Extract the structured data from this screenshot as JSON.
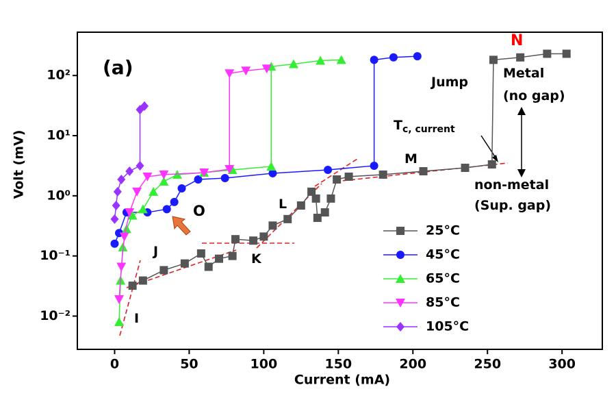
{
  "chart_data": {
    "type": "line",
    "xlabel": "Current (mA)",
    "ylabel": "Volt (mV)",
    "xlim": [
      -25,
      327
    ],
    "ylim": [
      0.0028,
      525
    ],
    "yscale": "log",
    "xticks": [
      0,
      50,
      100,
      150,
      200,
      250,
      300
    ],
    "yticks": [
      {
        "value": 0.01,
        "label": "10⁻²"
      },
      {
        "value": 0.1,
        "label": "10⁻¹"
      },
      {
        "value": 1,
        "label": "10⁰"
      },
      {
        "value": 10,
        "label": "10¹"
      },
      {
        "value": 100,
        "label": "10²"
      }
    ],
    "legend": "lower right",
    "series": [
      {
        "name": "25°C",
        "color": "#555555",
        "marker": "square",
        "x": [
          12,
          19,
          33,
          47,
          58,
          63,
          70,
          79,
          81,
          93,
          100,
          106,
          116,
          125,
          132,
          135,
          136,
          141,
          145,
          149,
          157,
          180,
          207,
          235,
          253,
          254,
          272,
          290,
          303
        ],
        "values": [
          0.032,
          0.039,
          0.058,
          0.075,
          0.11,
          0.066,
          0.09,
          0.1,
          0.19,
          0.18,
          0.21,
          0.32,
          0.41,
          0.69,
          1.17,
          0.9,
          0.43,
          0.53,
          0.9,
          1.87,
          2.08,
          2.25,
          2.56,
          2.92,
          3.33,
          182,
          200,
          230,
          230
        ]
      },
      {
        "name": "45°C",
        "color": "#1a1aff",
        "marker": "circle",
        "x": [
          0,
          3,
          8,
          22,
          35,
          40,
          45,
          56,
          74,
          106,
          143,
          174,
          174,
          187,
          203
        ],
        "values": [
          0.16,
          0.24,
          0.53,
          0.53,
          0.6,
          0.79,
          1.33,
          1.87,
          1.97,
          2.37,
          2.7,
          3.16,
          182,
          200,
          209
        ]
      },
      {
        "name": "65°C",
        "color": "#33ee33",
        "marker": "triangle-up",
        "x": [
          3,
          4,
          5.5,
          8,
          12,
          19,
          26,
          33,
          42,
          60,
          79,
          105,
          105,
          120,
          138,
          152
        ],
        "values": [
          0.008,
          0.039,
          0.14,
          0.28,
          0.47,
          0.6,
          1.17,
          1.73,
          2.25,
          2.43,
          2.7,
          3.08,
          141,
          155,
          177,
          182
        ]
      },
      {
        "name": "85°C",
        "color": "#ff33ff",
        "marker": "triangle-down",
        "x": [
          3,
          4.5,
          6.5,
          10,
          15,
          22,
          33,
          60,
          77,
          77,
          88,
          102
        ],
        "values": [
          0.019,
          0.066,
          0.21,
          0.53,
          1.17,
          2.08,
          2.25,
          2.43,
          2.77,
          108,
          120,
          130
        ]
      },
      {
        "name": "105°C",
        "color": "#9933ff",
        "marker": "diamond",
        "x": [
          0,
          1,
          2,
          4.5,
          10,
          17,
          17,
          20
        ],
        "values": [
          0.41,
          0.69,
          1.17,
          1.87,
          2.56,
          3.16,
          27,
          31
        ]
      }
    ],
    "annotations": [
      {
        "text": "(a)"
      },
      {
        "text": "N",
        "color": "#ff0000"
      },
      {
        "text": "Jump"
      },
      {
        "text": "Metal"
      },
      {
        "text": "(no gap)"
      },
      {
        "text": "T",
        "subscript": "c, current"
      },
      {
        "text": "M"
      },
      {
        "text": "non-metal"
      },
      {
        "text": "(Sup. gap)"
      },
      {
        "text": "O"
      },
      {
        "text": "L"
      },
      {
        "text": "J"
      },
      {
        "text": "K"
      },
      {
        "text": "I"
      }
    ]
  }
}
